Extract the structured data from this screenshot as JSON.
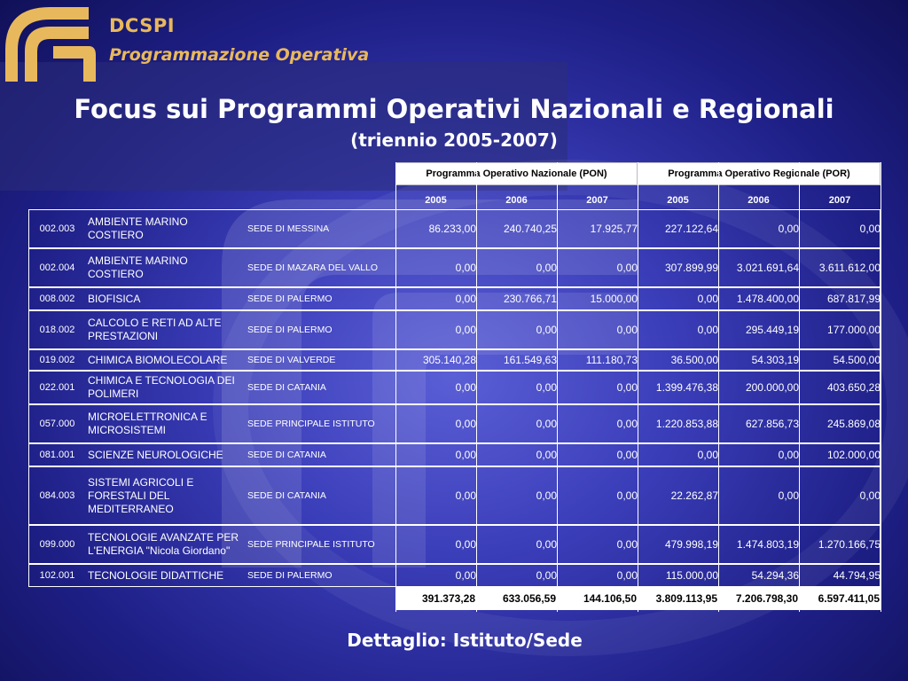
{
  "header": {
    "brand": "DCSPI",
    "subtitle": "Programmazione Operativa"
  },
  "title": "Focus sui Programmi Operativi Nazionali e Regionali",
  "subtitle": "(triennio 2005-2007)",
  "table": {
    "group_headers": [
      "Programma Operativo Nazionale (PON)",
      "Programma Operativo Regionale (POR)"
    ],
    "years": [
      "2005",
      "2006",
      "2007",
      "2005",
      "2006",
      "2007"
    ],
    "rows": [
      {
        "code": "002.003",
        "name": "AMBIENTE MARINO COSTIERO",
        "sede": "SEDE DI MESSINA",
        "values": [
          "86.233,00",
          "240.740,25",
          "17.925,77",
          "227.122,64",
          "0,00",
          "0,00"
        ]
      },
      {
        "code": "002.004",
        "name": "AMBIENTE MARINO COSTIERO",
        "sede": "SEDE DI MAZARA DEL VALLO",
        "values": [
          "0,00",
          "0,00",
          "0,00",
          "307.899,99",
          "3.021.691,64",
          "3.611.612,00"
        ]
      },
      {
        "code": "008.002",
        "name": "BIOFISICA",
        "sede": "SEDE DI PALERMO",
        "values": [
          "0,00",
          "230.766,71",
          "15.000,00",
          "0,00",
          "1.478.400,00",
          "687.817,99"
        ]
      },
      {
        "code": "018.002",
        "name": "CALCOLO E RETI AD ALTE PRESTAZIONI",
        "sede": "SEDE DI PALERMO",
        "values": [
          "0,00",
          "0,00",
          "0,00",
          "0,00",
          "295.449,19",
          "177.000,00"
        ]
      },
      {
        "code": "019.002",
        "name": "CHIMICA BIOMOLECOLARE",
        "sede": "SEDE DI VALVERDE",
        "values": [
          "305.140,28",
          "161.549,63",
          "111.180,73",
          "36.500,00",
          "54.303,19",
          "54.500,00"
        ]
      },
      {
        "code": "022.001",
        "name": "CHIMICA E TECNOLOGIA DEI POLIMERI",
        "sede": "SEDE DI CATANIA",
        "values": [
          "0,00",
          "0,00",
          "0,00",
          "1.399.476,38",
          "200.000,00",
          "403.650,28"
        ]
      },
      {
        "code": "057.000",
        "name": "MICROELETTRONICA E MICROSISTEMI",
        "sede": "SEDE PRINCIPALE ISTITUTO",
        "values": [
          "0,00",
          "0,00",
          "0,00",
          "1.220.853,88",
          "627.856,73",
          "245.869,08"
        ]
      },
      {
        "code": "081.001",
        "name": "SCIENZE NEUROLOGICHE",
        "sede": "SEDE DI CATANIA",
        "values": [
          "0,00",
          "0,00",
          "0,00",
          "0,00",
          "0,00",
          "102.000,00"
        ]
      },
      {
        "code": "084.003",
        "name": "SISTEMI AGRICOLI E FORESTALI DEL MEDITERRANEO",
        "sede": "SEDE DI CATANIA",
        "values": [
          "0,00",
          "0,00",
          "0,00",
          "22.262,87",
          "0,00",
          "0,00"
        ]
      },
      {
        "code": "099.000",
        "name": "TECNOLOGIE AVANZATE PER L'ENERGIA \"Nicola Giordano\"",
        "sede": "SEDE PRINCIPALE ISTITUTO",
        "values": [
          "0,00",
          "0,00",
          "0,00",
          "479.998,19",
          "1.474.803,19",
          "1.270.166,75"
        ]
      },
      {
        "code": "102.001",
        "name": "TECNOLOGIE DIDATTICHE",
        "sede": "SEDE DI PALERMO",
        "values": [
          "0,00",
          "0,00",
          "0,00",
          "115.000,00",
          "54.294,36",
          "44.794,95"
        ]
      }
    ],
    "totals": [
      "391.373,28",
      "633.056,59",
      "144.106,50",
      "3.809.113,95",
      "7.206.798,30",
      "6.597.411,05"
    ]
  },
  "footer": "Dettaglio: Istituto/Sede",
  "colors": {
    "accent": "#e8b85c",
    "background": "#2a2ca0",
    "text": "#ffffff"
  }
}
